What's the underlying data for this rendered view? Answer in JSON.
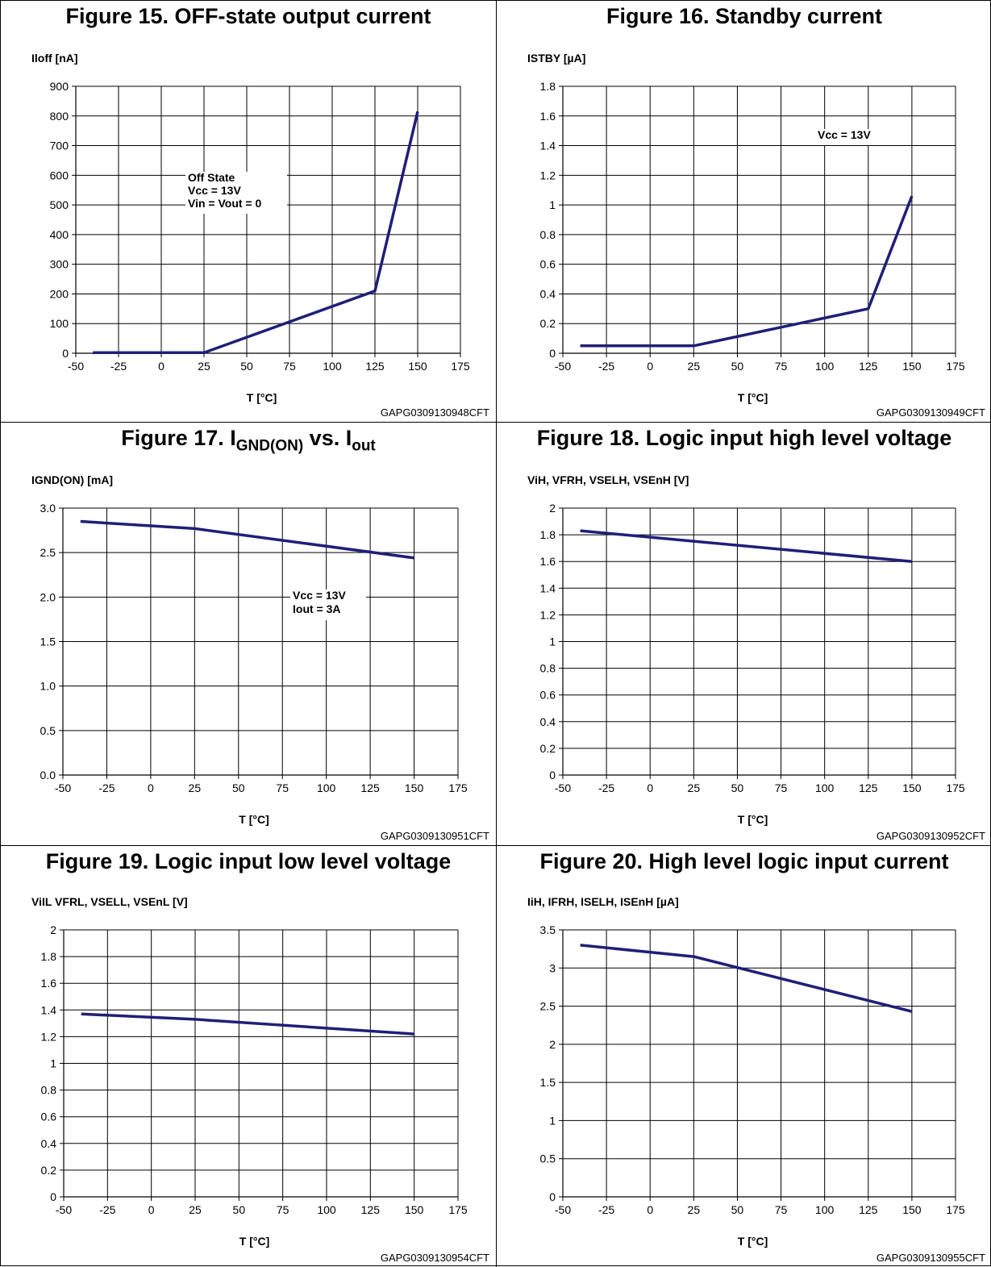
{
  "chart_data": [
    {
      "type": "line",
      "title": "Figure 15. OFF-state output current",
      "ylabel": "Iloff [nA]",
      "xlabel": "T [°C]",
      "xticks": [
        "-50",
        "-25",
        "0",
        "25",
        "50",
        "75",
        "100",
        "125",
        "150",
        "175"
      ],
      "yticks": [
        "0",
        "100",
        "200",
        "300",
        "400",
        "500",
        "600",
        "700",
        "800",
        "900"
      ],
      "xlim": [
        -50,
        175
      ],
      "ylim": [
        0,
        900
      ],
      "grid": true,
      "series": [
        {
          "x": [
            -40,
            25,
            125,
            150
          ],
          "y": [
            2,
            2,
            210,
            815
          ]
        }
      ],
      "annotation": [
        "Off State",
        "Vcc = 13V",
        "Vin = Vout = 0"
      ],
      "code": "GAPG0309130948CFT",
      "line_color": "#1f1f78"
    },
    {
      "type": "line",
      "title": "Figure 16. Standby current",
      "ylabel": "ISTBY [µA]",
      "xlabel": "T [°C]",
      "xticks": [
        "-50",
        "-25",
        "0",
        "25",
        "50",
        "75",
        "100",
        "125",
        "150",
        "175"
      ],
      "yticks": [
        "0",
        "0.2",
        "0.4",
        "0.6",
        "0.8",
        "1",
        "1.2",
        "1.4",
        "1.6",
        "1.8"
      ],
      "xlim": [
        -50,
        175
      ],
      "ylim": [
        0,
        1.8
      ],
      "grid": true,
      "series": [
        {
          "x": [
            -40,
            25,
            125,
            150
          ],
          "y": [
            0.05,
            0.05,
            0.3,
            1.06
          ]
        }
      ],
      "annotation": [
        "Vcc = 13V"
      ],
      "code": "GAPG0309130949CFT",
      "line_color": "#1f1f78"
    },
    {
      "type": "line",
      "title": "Figure 17. I",
      "title_sub1": "GND(ON)",
      "title_mid": " vs. I",
      "title_sub2": "out",
      "ylabel": "IGND(ON) [mA]",
      "xlabel": "T [°C]",
      "xticks": [
        "-50",
        "-25",
        "0",
        "25",
        "50",
        "75",
        "100",
        "125",
        "150",
        "175"
      ],
      "yticks": [
        "0.0",
        "0.5",
        "1.0",
        "1.5",
        "2.0",
        "2.5",
        "3.0"
      ],
      "xlim": [
        -50,
        175
      ],
      "ylim": [
        0,
        3.0
      ],
      "grid": true,
      "series": [
        {
          "x": [
            -40,
            25,
            150
          ],
          "y": [
            2.85,
            2.77,
            2.44
          ]
        }
      ],
      "annotation": [
        "Vcc = 13V",
        "Iout = 3A"
      ],
      "code": "GAPG0309130951CFT",
      "line_color": "#1f1f78"
    },
    {
      "type": "line",
      "title": "Figure 18. Logic input high level voltage",
      "ylabel": "ViH, VFRH, VSELH, VSEnH [V]",
      "xlabel": "T [°C]",
      "xticks": [
        "-50",
        "-25",
        "0",
        "25",
        "50",
        "75",
        "100",
        "125",
        "150",
        "175"
      ],
      "yticks": [
        "0",
        "0.2",
        "0.4",
        "0.6",
        "0.8",
        "1",
        "1.2",
        "1.4",
        "1.6",
        "1.8",
        "2"
      ],
      "xlim": [
        -50,
        175
      ],
      "ylim": [
        0,
        2
      ],
      "grid": true,
      "series": [
        {
          "x": [
            -40,
            150
          ],
          "y": [
            1.83,
            1.6
          ]
        }
      ],
      "annotation": [],
      "code": "GAPG0309130952CFT",
      "line_color": "#1f1f78"
    },
    {
      "type": "line",
      "title": "Figure 19. Logic input low level voltage",
      "ylabel": "ViIL VFRL, VSELL, VSEnL [V]",
      "xlabel": "T [°C]",
      "xticks": [
        "-50",
        "-25",
        "0",
        "25",
        "50",
        "75",
        "100",
        "125",
        "150",
        "175"
      ],
      "yticks": [
        "0",
        "0.2",
        "0.4",
        "0.6",
        "0.8",
        "1",
        "1.2",
        "1.4",
        "1.6",
        "1.8",
        "2"
      ],
      "xlim": [
        -50,
        175
      ],
      "ylim": [
        0,
        2
      ],
      "grid": true,
      "series": [
        {
          "x": [
            -40,
            25,
            150
          ],
          "y": [
            1.37,
            1.33,
            1.22
          ]
        }
      ],
      "annotation": [],
      "code": "GAPG0309130954CFT",
      "line_color": "#1f1f78"
    },
    {
      "type": "line",
      "title": "Figure 20. High level logic input current",
      "ylabel": "IiH, IFRH, ISELH, ISEnH [µA]",
      "xlabel": "T [°C]",
      "xticks": [
        "-50",
        "-25",
        "0",
        "25",
        "50",
        "75",
        "100",
        "125",
        "150",
        "175"
      ],
      "yticks": [
        "0",
        "0.5",
        "1",
        "1.5",
        "2",
        "2.5",
        "3",
        "3.5"
      ],
      "xlim": [
        -50,
        175
      ],
      "ylim": [
        0,
        3.5
      ],
      "grid": true,
      "series": [
        {
          "x": [
            -40,
            25,
            150
          ],
          "y": [
            3.3,
            3.15,
            2.43
          ]
        }
      ],
      "annotation": [],
      "code": "GAPG0309130955CFT",
      "line_color": "#1f1f78"
    }
  ]
}
